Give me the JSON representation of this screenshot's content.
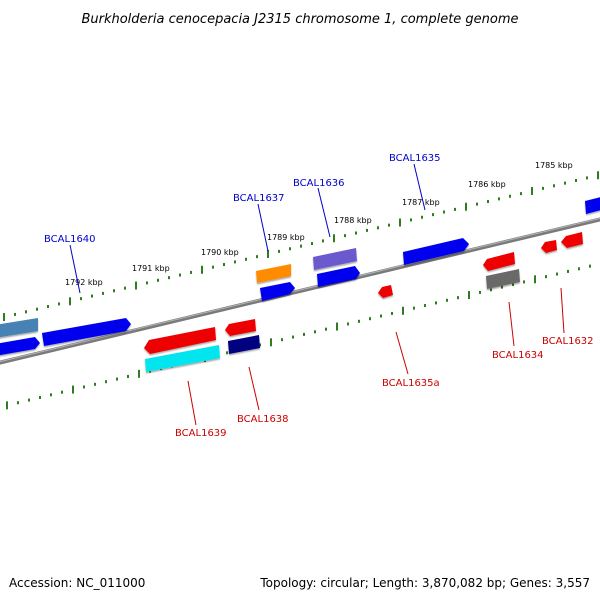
{
  "title": "Burkholderia cenocepacia J2315 chromosome 1, complete genome",
  "footer": {
    "accession": "Accession: NC_011000",
    "summary": "Topology: circular; Length: 3,870,082 bp; Genes: 3,557"
  },
  "kbp_labels": [
    "1792 kbp",
    "1791 kbp",
    "1790 kbp",
    "1789 kbp",
    "1788 kbp",
    "1787 kbp",
    "1786 kbp",
    "1785 kbp"
  ],
  "genes_top": [
    "BCAL1640",
    "BCAL1637",
    "BCAL1636",
    "BCAL1635"
  ],
  "genes_bottom": [
    "BCAL1639",
    "BCAL1638",
    "BCAL1635a",
    "BCAL1634",
    "BCAL1632"
  ],
  "colors": {
    "backbone": "#808080",
    "tick": "#2e7d1e",
    "blue": "#0000ee",
    "red": "#ee0000",
    "steelblue": "#4682b4",
    "orange": "#ff8c00",
    "slateblue": "#6a5acd",
    "navy": "#000080",
    "cyan": "#00e5ee",
    "gray": "#696969"
  }
}
